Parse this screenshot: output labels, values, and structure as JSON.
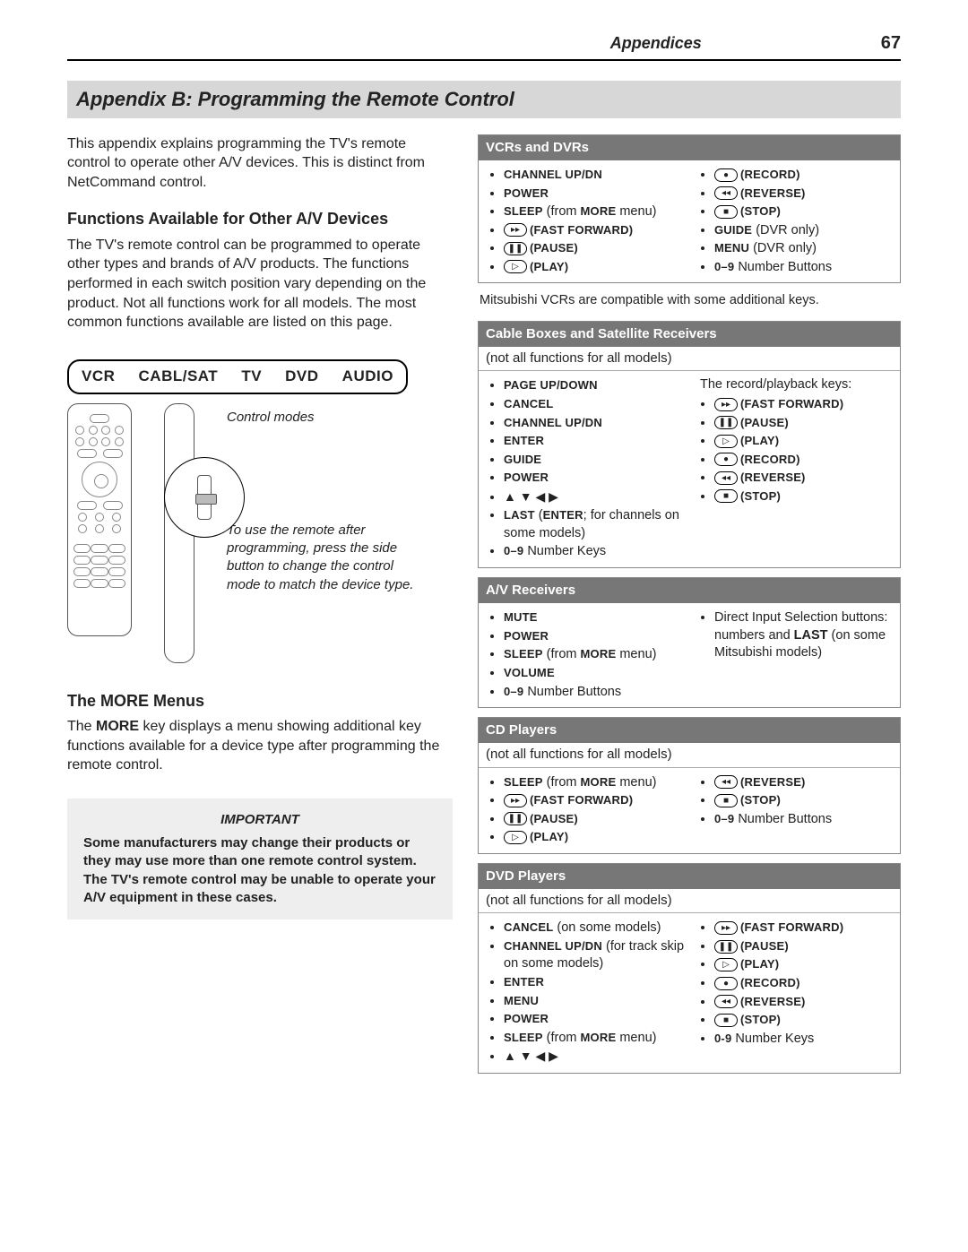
{
  "header": {
    "section": "Appendices",
    "page": "67"
  },
  "banner": "Appendix B:  Programming the Remote Control",
  "intro": "This appendix explains programming the TV's remote control to operate other A/V devices.  This is distinct from NetCommand control.",
  "functions": {
    "title": "Functions Available for Other A/V Devices",
    "body": "The TV's remote control can be programmed to operate other types and brands of A/V products. The functions performed in each switch position vary depending on the product.  Not all functions work for all models.  The most common functions available are listed on this page."
  },
  "modes": {
    "vcr": "VCR",
    "cabl": "CABL/SAT",
    "tv": "TV",
    "dvd": "DVD",
    "audio": "AUDIO"
  },
  "captions": {
    "control_modes": "Control modes",
    "side_button": "To use the remote after programming, press the side button to change the control mode to match the device type."
  },
  "more": {
    "title": "The MORE Menus",
    "body_1": "The ",
    "body_key": "MORE",
    "body_2": " key displays a menu showing additional key functions available for a device type after programming the remote control."
  },
  "important": {
    "label": "IMPORTANT",
    "text": "Some manufacturers may change their products or they may use more than one remote control system.  The TV's remote control may be unable to operate your A/V equipment in these cases."
  },
  "syms": {
    "ff": "▸▸",
    "pause": "❚❚",
    "play": "▷",
    "rec": "●",
    "rev": "◂◂",
    "stop": "■"
  },
  "tables": {
    "vcr": {
      "title": "VCRs and DVRs",
      "left": [
        {
          "k": "CHANNEL UP/DN"
        },
        {
          "k": "POWER"
        },
        {
          "k": "SLEEP",
          "extra": " (from ",
          "k2": "MORE",
          "extra2": " menu)"
        },
        {
          "sym": "ff",
          "k": "(FAST FORWARD)"
        },
        {
          "sym": "pause",
          "k": "(PAUSE)"
        },
        {
          "sym": "play",
          "k": "(PLAY)"
        }
      ],
      "right": [
        {
          "sym": "rec",
          "k": "(RECORD)"
        },
        {
          "sym": "rev",
          "k": "(REVERSE)"
        },
        {
          "sym": "stop",
          "k": "(STOP)"
        },
        {
          "k": "GUIDE",
          "extra": " (DVR only)"
        },
        {
          "k": "MENU",
          "extra": " (DVR only)"
        },
        {
          "k": "0–9",
          "plain": " Number Buttons"
        }
      ],
      "footnote": "Mitsubishi VCRs are compatible with some additional keys."
    },
    "cable": {
      "title": "Cable Boxes and Satellite Receivers",
      "note": "(not all functions for all models)",
      "left": [
        {
          "k": "PAGE UP/DOWN"
        },
        {
          "k": "CANCEL"
        },
        {
          "k": "CHANNEL UP/DN"
        },
        {
          "k": "ENTER"
        },
        {
          "k": "GUIDE"
        },
        {
          "k": "POWER"
        },
        {
          "arrows": "▲ ▼ ◀ ▶"
        },
        {
          "k": "LAST",
          "extra": " (",
          "k2": "ENTER",
          "extra2": "; for channels on some models)"
        },
        {
          "k": "0–9",
          "plain": " Number Keys"
        }
      ],
      "right_intro": "The record/playback keys:",
      "right": [
        {
          "sym": "ff",
          "k": "(FAST FORWARD)"
        },
        {
          "sym": "pause",
          "k": "(PAUSE)"
        },
        {
          "sym": "play",
          "k": "(PLAY)"
        },
        {
          "sym": "rec",
          "k": "(RECORD)"
        },
        {
          "sym": "rev",
          "k": "(REVERSE)"
        },
        {
          "sym": "stop",
          "k": "(STOP)"
        }
      ]
    },
    "av": {
      "title": "A/V Receivers",
      "left": [
        {
          "k": "MUTE"
        },
        {
          "k": "POWER"
        },
        {
          "k": "SLEEP",
          "extra": " (from ",
          "k2": "MORE",
          "extra2": " menu)"
        },
        {
          "k": "VOLUME"
        },
        {
          "k": "0–9",
          "plain": " Number Buttons"
        }
      ],
      "right_single": "Direct Input Selection buttons:  numbers and LAST (on some Mitsubishi models)"
    },
    "cd": {
      "title": "CD Players",
      "note": "(not all functions for all models)",
      "left": [
        {
          "k": "SLEEP",
          "extra": " (from ",
          "k2": "MORE",
          "extra2": " menu)"
        },
        {
          "sym": "ff",
          "k": "(FAST FORWARD)"
        },
        {
          "sym": "pause",
          "k": "(PAUSE)"
        },
        {
          "sym": "play",
          "k": "(PLAY)"
        }
      ],
      "right": [
        {
          "sym": "rev",
          "k": "(REVERSE)"
        },
        {
          "sym": "stop",
          "k": "(STOP)"
        },
        {
          "k": "0–9",
          "plain": " Number Buttons"
        }
      ]
    },
    "dvd": {
      "title": "DVD Players",
      "note": "(not all functions for all models)",
      "left": [
        {
          "k": "CANCEL",
          "extra": " (on some models)"
        },
        {
          "k": "CHANNEL UP/DN",
          "extra": " (for track skip on some models)"
        },
        {
          "k": "ENTER"
        },
        {
          "k": "MENU"
        },
        {
          "k": "POWER"
        },
        {
          "k": "SLEEP",
          "extra": " (from ",
          "k2": "MORE",
          "extra2": " menu)"
        },
        {
          "arrows": "▲ ▼ ◀ ▶"
        }
      ],
      "right": [
        {
          "sym": "ff",
          "k": "(FAST FORWARD)"
        },
        {
          "sym": "pause",
          "k": "(PAUSE)"
        },
        {
          "sym": "play",
          "k": "(PLAY)"
        },
        {
          "sym": "rec",
          "k": "(RECORD)"
        },
        {
          "sym": "rev",
          "k": "(REVERSE)"
        },
        {
          "sym": "stop",
          "k": "(STOP)"
        },
        {
          "k": "0-9",
          "plain": " Number Keys"
        }
      ]
    }
  }
}
